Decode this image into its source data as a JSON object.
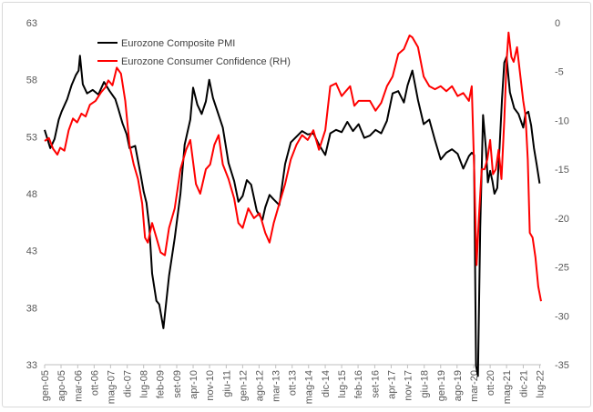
{
  "chart_data": {
    "type": "line",
    "title": "",
    "left_axis": {
      "ylim": [
        33,
        63
      ],
      "ticks": [
        "33",
        "38",
        "43",
        "48",
        "53",
        "58",
        "63"
      ]
    },
    "right_axis": {
      "ylim": [
        -35,
        0
      ],
      "ticks": [
        "-35",
        "-30",
        "-25",
        "-20",
        "-15",
        "-10",
        "-5",
        "0"
      ]
    },
    "x_range": [
      2005.0,
      2022.55
    ],
    "x_ticks": [
      {
        "label": "gen-05",
        "x": 2005.0
      },
      {
        "label": "ago-05",
        "x": 2005.58
      },
      {
        "label": "mar-06",
        "x": 2006.17
      },
      {
        "label": "ott-06",
        "x": 2006.75
      },
      {
        "label": "mag-07",
        "x": 2007.33
      },
      {
        "label": "dic-07",
        "x": 2007.92
      },
      {
        "label": "lug-08",
        "x": 2008.5
      },
      {
        "label": "feb-09",
        "x": 2009.08
      },
      {
        "label": "set-09",
        "x": 2009.67
      },
      {
        "label": "apr-10",
        "x": 2010.25
      },
      {
        "label": "nov-10",
        "x": 2010.83
      },
      {
        "label": "giu-11",
        "x": 2011.42
      },
      {
        "label": "gen-12",
        "x": 2012.0
      },
      {
        "label": "ago-12",
        "x": 2012.58
      },
      {
        "label": "mar-13",
        "x": 2013.17
      },
      {
        "label": "ott-13",
        "x": 2013.75
      },
      {
        "label": "mag-14",
        "x": 2014.33
      },
      {
        "label": "dic-14",
        "x": 2014.92
      },
      {
        "label": "lug-15",
        "x": 2015.5
      },
      {
        "label": "feb-16",
        "x": 2016.08
      },
      {
        "label": "set-16",
        "x": 2016.67
      },
      {
        "label": "apr-17",
        "x": 2017.25
      },
      {
        "label": "nov-17",
        "x": 2017.83
      },
      {
        "label": "giu-18",
        "x": 2018.42
      },
      {
        "label": "gen-19",
        "x": 2019.0
      },
      {
        "label": "ago-19",
        "x": 2019.58
      },
      {
        "label": "mar-20",
        "x": 2020.17
      },
      {
        "label": "ott-20",
        "x": 2020.75
      },
      {
        "label": "mag-21",
        "x": 2021.33
      },
      {
        "label": "dic-21",
        "x": 2021.92
      },
      {
        "label": "lug-22",
        "x": 2022.5
      }
    ],
    "series": [
      {
        "name": "Eurozone Composite PMI",
        "axis": "left",
        "color": "#000000",
        "x": [
          2005.0,
          2005.2,
          2005.35,
          2005.5,
          2005.6,
          2005.8,
          2005.95,
          2006.1,
          2006.2,
          2006.25,
          2006.35,
          2006.5,
          2006.7,
          2006.9,
          2007.1,
          2007.3,
          2007.5,
          2007.6,
          2007.75,
          2007.9,
          2008.0,
          2008.2,
          2008.4,
          2008.5,
          2008.6,
          2008.7,
          2008.8,
          2008.95,
          2009.05,
          2009.2,
          2009.4,
          2009.6,
          2009.8,
          2009.95,
          2010.15,
          2010.25,
          2010.4,
          2010.55,
          2010.7,
          2010.82,
          2010.95,
          2011.1,
          2011.3,
          2011.5,
          2011.7,
          2011.85,
          2012.0,
          2012.15,
          2012.3,
          2012.5,
          2012.7,
          2012.8,
          2012.95,
          2013.1,
          2013.3,
          2013.5,
          2013.7,
          2013.9,
          2014.1,
          2014.3,
          2014.5,
          2014.7,
          2014.92,
          2015.1,
          2015.3,
          2015.5,
          2015.7,
          2015.9,
          2016.1,
          2016.3,
          2016.5,
          2016.7,
          2016.9,
          2017.1,
          2017.3,
          2017.5,
          2017.7,
          2017.83,
          2018.0,
          2018.2,
          2018.4,
          2018.6,
          2018.8,
          2019.0,
          2019.2,
          2019.4,
          2019.6,
          2019.8,
          2020.0,
          2020.1,
          2020.18,
          2020.25,
          2020.32,
          2020.4,
          2020.5,
          2020.6,
          2020.67,
          2020.75,
          2020.83,
          2020.9,
          2021.0,
          2021.08,
          2021.17,
          2021.25,
          2021.33,
          2021.45,
          2021.6,
          2021.75,
          2021.92,
          2022.0,
          2022.1,
          2022.2,
          2022.3,
          2022.4,
          2022.5
        ],
        "y": [
          53.6,
          52.0,
          52.8,
          54.5,
          55.2,
          56.3,
          57.5,
          58.4,
          58.8,
          60.1,
          57.6,
          56.8,
          57.1,
          56.7,
          57.8,
          57.0,
          56.3,
          55.5,
          54.2,
          53.2,
          52.0,
          52.2,
          49.6,
          48.2,
          47.2,
          45.1,
          41.0,
          38.6,
          38.3,
          36.2,
          40.8,
          44.1,
          48.0,
          52.3,
          54.5,
          57.3,
          55.8,
          55.0,
          56.1,
          58.0,
          56.4,
          55.3,
          53.8,
          50.7,
          49.1,
          47.3,
          47.8,
          49.2,
          48.8,
          46.5,
          45.7,
          46.8,
          47.9,
          47.5,
          47.0,
          50.6,
          52.5,
          53.0,
          53.5,
          53.2,
          53.3,
          52.3,
          51.4,
          53.3,
          53.6,
          53.4,
          54.3,
          53.5,
          54.1,
          52.9,
          53.1,
          53.6,
          53.3,
          54.4,
          56.8,
          57.0,
          56.0,
          57.5,
          58.8,
          56.2,
          54.1,
          54.5,
          52.7,
          51.0,
          51.6,
          51.9,
          51.5,
          50.2,
          51.3,
          51.6,
          51.4,
          32.9,
          32.0,
          45.0,
          54.9,
          52.0,
          49.0,
          50.0,
          49.1,
          48.0,
          48.5,
          52.0,
          56.3,
          59.5,
          60.0,
          56.9,
          55.5,
          55.0,
          53.8,
          55.0,
          55.2,
          54.0,
          52.0,
          50.5,
          48.9
        ]
      },
      {
        "name": "Eurozone Consumer Confidence (RH)",
        "axis": "right",
        "color": "#ff0000",
        "x": [
          2005.0,
          2005.15,
          2005.3,
          2005.45,
          2005.55,
          2005.7,
          2005.85,
          2006.0,
          2006.15,
          2006.3,
          2006.45,
          2006.6,
          2006.8,
          2007.0,
          2007.15,
          2007.25,
          2007.4,
          2007.55,
          2007.7,
          2007.85,
          2008.0,
          2008.15,
          2008.3,
          2008.45,
          2008.55,
          2008.65,
          2008.8,
          2008.95,
          2009.1,
          2009.25,
          2009.4,
          2009.6,
          2009.8,
          2010.0,
          2010.15,
          2010.35,
          2010.5,
          2010.7,
          2010.85,
          2011.0,
          2011.15,
          2011.3,
          2011.5,
          2011.7,
          2011.85,
          2012.0,
          2012.2,
          2012.4,
          2012.6,
          2012.8,
          2012.95,
          2013.1,
          2013.3,
          2013.5,
          2013.7,
          2013.9,
          2014.1,
          2014.3,
          2014.5,
          2014.7,
          2014.92,
          2015.1,
          2015.3,
          2015.5,
          2015.65,
          2015.8,
          2015.95,
          2016.1,
          2016.3,
          2016.5,
          2016.7,
          2016.9,
          2017.1,
          2017.3,
          2017.5,
          2017.7,
          2017.9,
          2018.0,
          2018.2,
          2018.4,
          2018.6,
          2018.8,
          2019.0,
          2019.2,
          2019.4,
          2019.6,
          2019.8,
          2020.0,
          2020.1,
          2020.18,
          2020.27,
          2020.35,
          2020.45,
          2020.55,
          2020.65,
          2020.75,
          2020.85,
          2020.95,
          2021.05,
          2021.15,
          2021.25,
          2021.33,
          2021.4,
          2021.5,
          2021.58,
          2021.7,
          2021.8,
          2021.92,
          2022.0,
          2022.08,
          2022.15,
          2022.25,
          2022.35,
          2022.45,
          2022.55
        ],
        "y": [
          -12.1,
          -11.8,
          -12.9,
          -13.5,
          -12.8,
          -13.1,
          -11.0,
          -9.8,
          -10.2,
          -9.3,
          -9.6,
          -8.4,
          -8.0,
          -7.1,
          -6.6,
          -5.9,
          -6.4,
          -4.6,
          -5.2,
          -8.0,
          -12.5,
          -14.5,
          -16.0,
          -18.5,
          -22.0,
          -22.5,
          -20.5,
          -22.0,
          -23.5,
          -23.8,
          -21.0,
          -19.0,
          -15.0,
          -13.0,
          -12.0,
          -16.5,
          -17.5,
          -15.0,
          -14.5,
          -12.5,
          -11.5,
          -14.5,
          -16.0,
          -18.0,
          -20.5,
          -21.0,
          -19.0,
          -20.0,
          -19.5,
          -21.5,
          -22.5,
          -20.5,
          -18.5,
          -16.5,
          -14.0,
          -12.5,
          -11.5,
          -12.0,
          -11.0,
          -13.0,
          -11.0,
          -6.5,
          -6.2,
          -7.5,
          -7.0,
          -6.5,
          -8.5,
          -8.0,
          -8.0,
          -8.0,
          -9.0,
          -8.2,
          -6.5,
          -5.5,
          -3.2,
          -2.7,
          -1.3,
          -1.5,
          -2.5,
          -5.5,
          -6.5,
          -6.8,
          -6.5,
          -7.0,
          -6.5,
          -7.5,
          -7.2,
          -8.0,
          -6.5,
          -14.5,
          -24.8,
          -20.0,
          -15.0,
          -15.0,
          -14.0,
          -12.0,
          -15.5,
          -15.0,
          -13.0,
          -16.0,
          -10.0,
          -4.0,
          -1.0,
          -3.5,
          -4.0,
          -2.5,
          -5.0,
          -8.0,
          -9.5,
          -14.0,
          -21.5,
          -22.0,
          -24.0,
          -27.0,
          -28.5
        ]
      }
    ]
  },
  "legend": [
    {
      "name": "Eurozone Composite PMI",
      "color": "#000000"
    },
    {
      "name": "Eurozone Consumer Confidence (RH)",
      "color": "#ff0000"
    }
  ]
}
